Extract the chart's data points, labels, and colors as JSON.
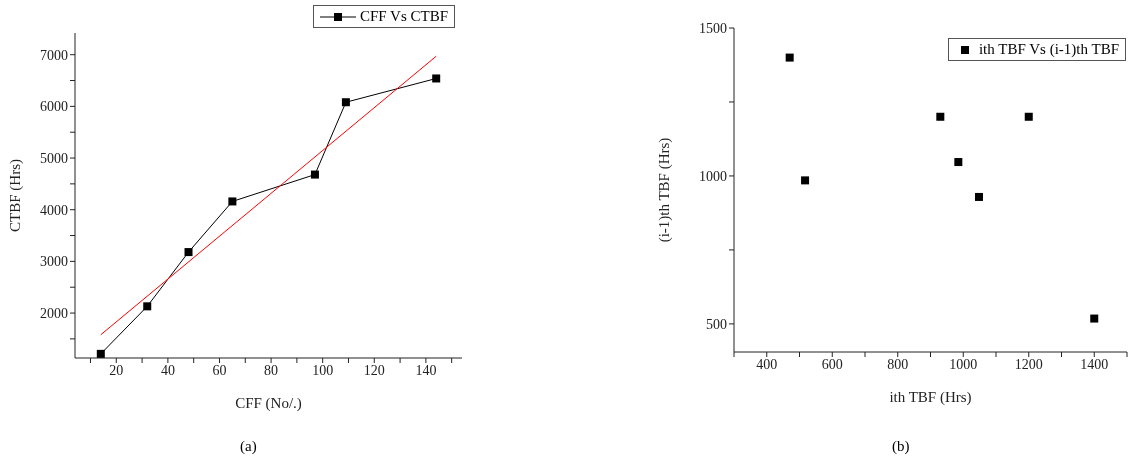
{
  "chart_data": [
    {
      "type": "line",
      "xlabel": "CFF (No/.)",
      "ylabel": "CTBF (Hrs)",
      "marker": "square",
      "legend": "top right",
      "grid": false,
      "xlim": [
        4,
        154
      ],
      "ylim": [
        1130,
        7420
      ],
      "xticks": [
        {
          "value": 10,
          "label": null
        },
        20,
        {
          "value": 30,
          "label": null
        },
        40,
        {
          "value": 50,
          "label": null
        },
        60,
        {
          "value": 70,
          "label": null
        },
        80,
        {
          "value": 90,
          "label": null
        },
        100,
        {
          "value": 110,
          "label": null
        },
        120,
        {
          "value": 130,
          "label": null
        },
        140,
        {
          "value": 150,
          "label": null
        }
      ],
      "yticks": [
        {
          "value": 1500,
          "label": null
        },
        2000,
        {
          "value": 2500,
          "label": null
        },
        3000,
        {
          "value": 3500,
          "label": null
        },
        4000,
        {
          "value": 4500,
          "label": null
        },
        5000,
        {
          "value": 5500,
          "label": null
        },
        6000,
        {
          "value": 6500,
          "label": null
        },
        7000
      ],
      "x": [
        14,
        32,
        48,
        65,
        97,
        109,
        144
      ],
      "series": [
        {
          "name": "CFF Vs CTBF",
          "color": "#000000",
          "values": [
            1210,
            2130,
            3180,
            4160,
            4680,
            6080,
            6540
          ]
        },
        {
          "type": "line",
          "color": "#ff0000",
          "marker": "none",
          "x": [
            14,
            144
          ],
          "values": [
            1580,
            6970
          ]
        }
      ],
      "annotations": [
        "(a)"
      ]
    },
    {
      "type": "scatter",
      "xlabel": "ith TBF (Hrs)",
      "ylabel": "(i-1)th TBF (Hrs)",
      "marker": "square",
      "legend": "top right",
      "grid": false,
      "xlim": [
        300,
        1500
      ],
      "ylim": [
        405,
        1500
      ],
      "xticks": [
        {
          "value": 300,
          "label": null
        },
        400,
        {
          "value": 500,
          "label": null
        },
        600,
        {
          "value": 700,
          "label": null
        },
        800,
        {
          "value": 900,
          "label": null
        },
        1000,
        {
          "value": 1100,
          "label": null
        },
        1200,
        {
          "value": 1300,
          "label": null
        },
        1400,
        {
          "value": 1500,
          "label": null
        }
      ],
      "yticks": [
        500,
        {
          "value": 750,
          "label": null
        },
        1000,
        {
          "value": 1250,
          "label": null
        },
        1500
      ],
      "x": [
        470,
        517,
        930,
        985,
        1048,
        1200,
        1400
      ],
      "series": [
        {
          "name": "ith TBF Vs (i-1)th TBF",
          "color": "#000000",
          "values": [
            1400,
            985,
            1200,
            1047,
            929,
            1200,
            518
          ]
        }
      ],
      "annotations": [
        "(b)"
      ]
    }
  ]
}
